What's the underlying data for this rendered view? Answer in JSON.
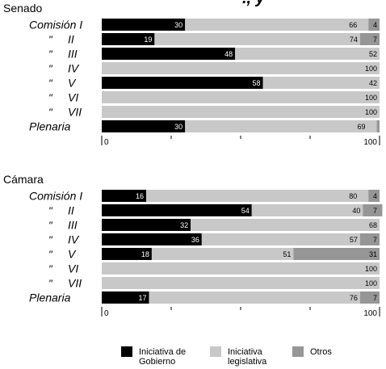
{
  "chart_data": {
    "type": "bar",
    "stacked": true,
    "orientation": "horizontal",
    "title_fragment": "., y",
    "colors": {
      "gobierno": "#000000",
      "legislativa": "#c8c8c8",
      "otros": "#969696"
    },
    "axis": {
      "min": 0,
      "max": 100,
      "tick_labels": [
        "0",
        "100"
      ]
    },
    "legend": [
      {
        "key": "gobierno",
        "label": "Iniciativa de Gobierno"
      },
      {
        "key": "legislativa",
        "label": "Iniciativa legislativa"
      },
      {
        "key": "otros",
        "label": "Otros"
      }
    ],
    "panels": [
      {
        "title": "Senado",
        "rows": [
          {
            "label": "Comisión I",
            "ditto": "",
            "numeral": "",
            "gobierno": 30,
            "legislativa": 66,
            "otros": 4
          },
          {
            "label": "",
            "ditto": "\"",
            "numeral": "II",
            "gobierno": 19,
            "legislativa": 74,
            "otros": 7
          },
          {
            "label": "",
            "ditto": "\"",
            "numeral": "III",
            "gobierno": 48,
            "legislativa": 52,
            "otros": 0
          },
          {
            "label": "",
            "ditto": "\"",
            "numeral": "IV",
            "gobierno": 0,
            "legislativa": 100,
            "otros": 0
          },
          {
            "label": "",
            "ditto": "\"",
            "numeral": "V",
            "gobierno": 58,
            "legislativa": 42,
            "otros": 0
          },
          {
            "label": "",
            "ditto": "\"",
            "numeral": "VI",
            "gobierno": 0,
            "legislativa": 100,
            "otros": 0
          },
          {
            "label": "",
            "ditto": "\"",
            "numeral": "VII",
            "gobierno": 0,
            "legislativa": 100,
            "otros": 0
          },
          {
            "label": "Plenaria",
            "ditto": "",
            "numeral": "",
            "gobierno": 30,
            "legislativa": 69,
            "otros": 1
          }
        ]
      },
      {
        "title": "Cámara",
        "rows": [
          {
            "label": "Comisión I",
            "ditto": "",
            "numeral": "",
            "gobierno": 16,
            "legislativa": 80,
            "otros": 4
          },
          {
            "label": "",
            "ditto": "\"",
            "numeral": "II",
            "gobierno": 54,
            "legislativa": 40,
            "otros": 7
          },
          {
            "label": "",
            "ditto": "\"",
            "numeral": "III",
            "gobierno": 32,
            "legislativa": 68,
            "otros": 0
          },
          {
            "label": "",
            "ditto": "\"",
            "numeral": "IV",
            "gobierno": 36,
            "legislativa": 57,
            "otros": 7
          },
          {
            "label": "",
            "ditto": "\"",
            "numeral": "V",
            "gobierno": 18,
            "legislativa": 51,
            "otros": 31
          },
          {
            "label": "",
            "ditto": "\"",
            "numeral": "VI",
            "gobierno": 0,
            "legislativa": 100,
            "otros": 0
          },
          {
            "label": "",
            "ditto": "\"",
            "numeral": "VII",
            "gobierno": 0,
            "legislativa": 100,
            "otros": 0
          },
          {
            "label": "Plenaria",
            "ditto": "",
            "numeral": "",
            "gobierno": 17,
            "legislativa": 76,
            "otros": 7
          }
        ]
      }
    ]
  }
}
